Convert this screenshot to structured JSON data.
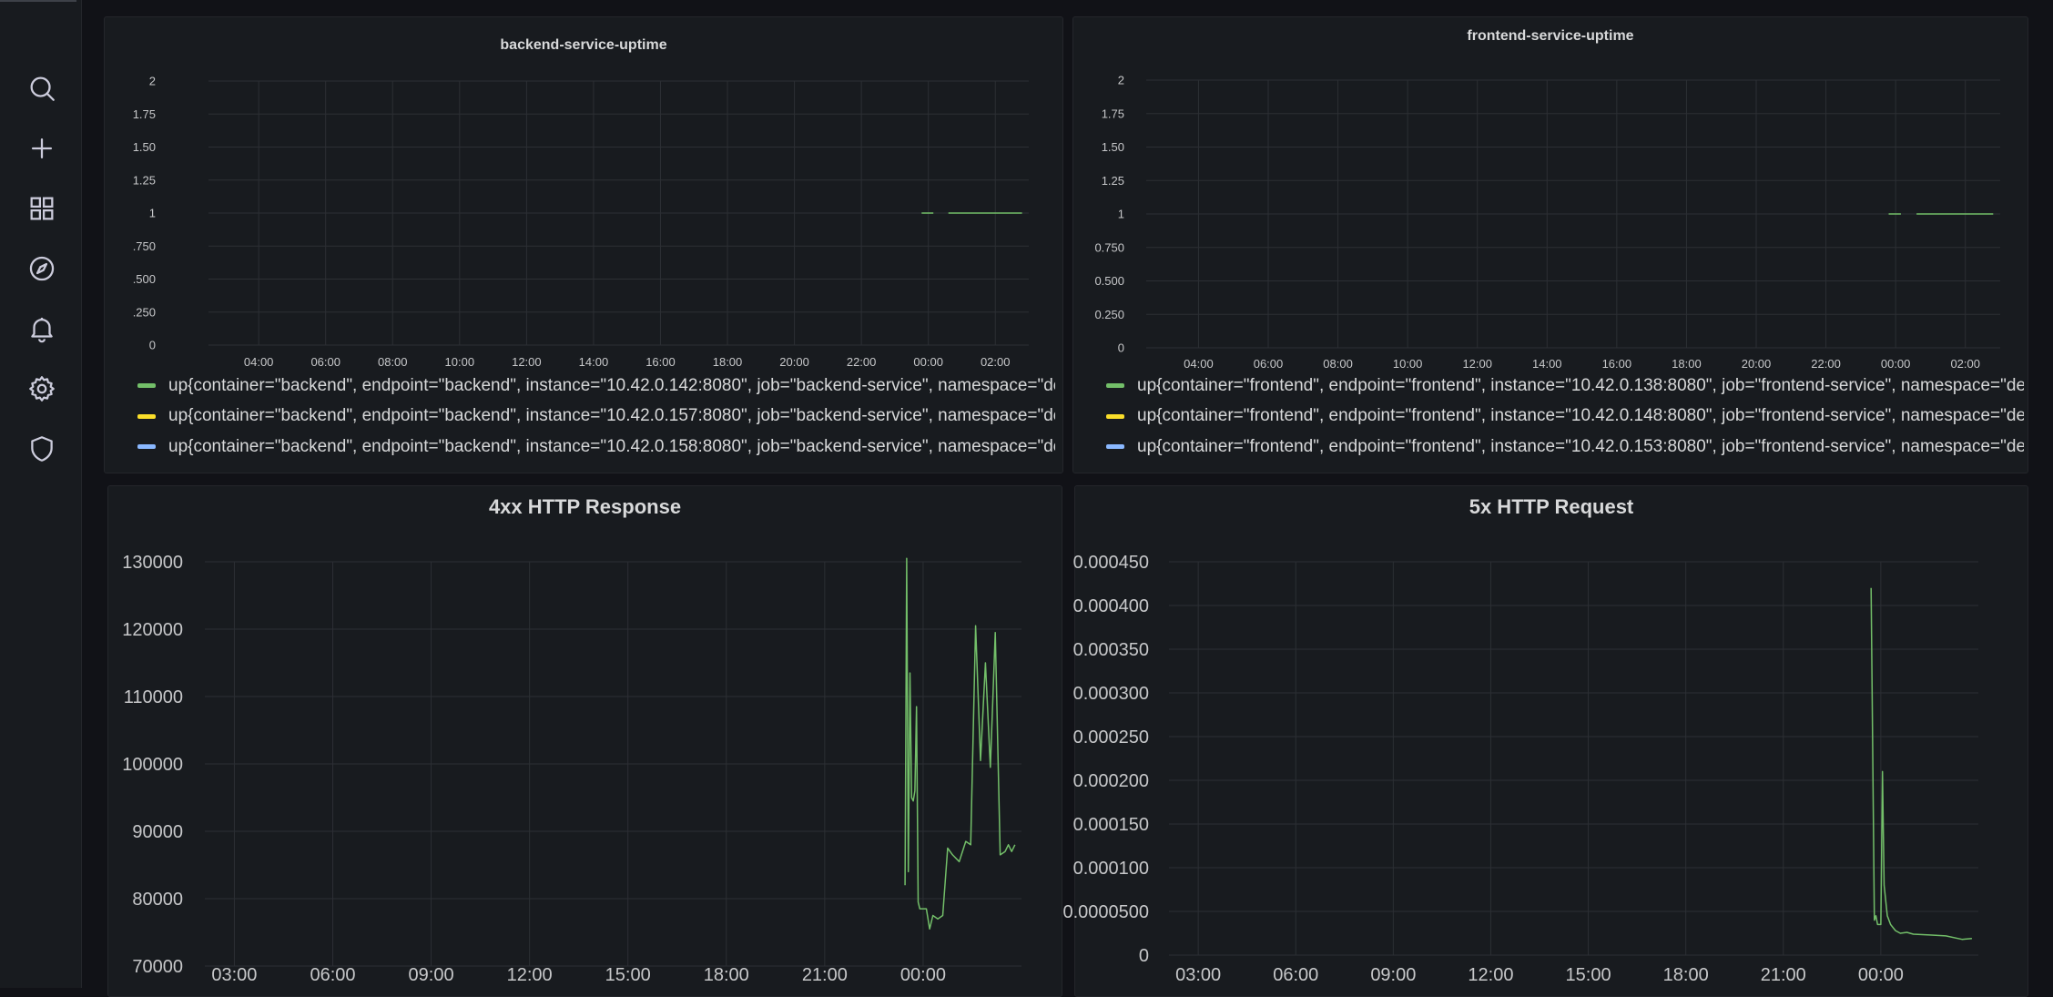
{
  "sidebar": {
    "items": [
      {
        "name": "search-icon"
      },
      {
        "name": "plus-icon"
      },
      {
        "name": "dashboards-icon"
      },
      {
        "name": "explore-compass-icon"
      },
      {
        "name": "alerting-bell-icon"
      },
      {
        "name": "gear-icon"
      },
      {
        "name": "shield-icon"
      }
    ]
  },
  "panels": {
    "backend": {
      "title": "backend-service-uptime",
      "legend": [
        {
          "color": "#73bf69",
          "text": "up{container=\"backend\", endpoint=\"backend\", instance=\"10.42.0.142:8080\", job=\"backend-service\", namespace=\"defaul"
        },
        {
          "color": "#fade2a",
          "text": "up{container=\"backend\", endpoint=\"backend\", instance=\"10.42.0.157:8080\", job=\"backend-service\", namespace=\"defaul"
        },
        {
          "color": "#8ab8ff",
          "text": "up{container=\"backend\", endpoint=\"backend\", instance=\"10.42.0.158:8080\", job=\"backend-service\", namespace=\"defaul"
        }
      ]
    },
    "frontend": {
      "title": "frontend-service-uptime",
      "legend": [
        {
          "color": "#73bf69",
          "text": "up{container=\"frontend\", endpoint=\"frontend\", instance=\"10.42.0.138:8080\", job=\"frontend-service\", namespace=\"defaul"
        },
        {
          "color": "#fade2a",
          "text": "up{container=\"frontend\", endpoint=\"frontend\", instance=\"10.42.0.148:8080\", job=\"frontend-service\", namespace=\"defaul"
        },
        {
          "color": "#8ab8ff",
          "text": "up{container=\"frontend\", endpoint=\"frontend\", instance=\"10.42.0.153:8080\", job=\"frontend-service\", namespace=\"defaul"
        }
      ]
    },
    "http4xx": {
      "title": "4xx HTTP Response"
    },
    "http5xx": {
      "title": "5x HTTP Request"
    }
  },
  "chart_data": [
    {
      "id": "backend",
      "type": "line",
      "title": "backend-service-uptime",
      "x_ticks": [
        "04:00",
        "06:00",
        "08:00",
        "10:00",
        "12:00",
        "14:00",
        "16:00",
        "18:00",
        "20:00",
        "22:00",
        "00:00",
        "02:00"
      ],
      "y_ticks": [
        "2",
        "1.75",
        "1.50",
        "1.25",
        "1",
        ".750",
        ".500",
        ".250",
        "0"
      ],
      "ylim": [
        0,
        2
      ],
      "grid": true,
      "series": [
        {
          "color": "#73bf69",
          "x": [
            23.8,
            24.15
          ],
          "y": [
            1,
            1
          ]
        },
        {
          "color": "#73bf69",
          "x": [
            24.6,
            26.8
          ],
          "y": [
            1,
            1
          ]
        }
      ]
    },
    {
      "id": "frontend",
      "type": "line",
      "title": "frontend-service-uptime",
      "x_ticks": [
        "04:00",
        "06:00",
        "08:00",
        "10:00",
        "12:00",
        "14:00",
        "16:00",
        "18:00",
        "20:00",
        "22:00",
        "00:00",
        "02:00"
      ],
      "y_ticks": [
        "2",
        "1.75",
        "1.50",
        "1.25",
        "1",
        "0.750",
        "0.500",
        "0.250",
        "0"
      ],
      "ylim": [
        0,
        2
      ],
      "grid": true,
      "series": [
        {
          "color": "#73bf69",
          "x": [
            23.8,
            24.15
          ],
          "y": [
            1,
            1
          ]
        },
        {
          "color": "#73bf69",
          "x": [
            24.6,
            26.8
          ],
          "y": [
            1,
            1
          ]
        }
      ]
    },
    {
      "id": "http4xx",
      "type": "line",
      "title": "4xx HTTP Response",
      "x_ticks": [
        "03:00",
        "06:00",
        "09:00",
        "12:00",
        "15:00",
        "18:00",
        "21:00",
        "00:00"
      ],
      "y_ticks": [
        "130000",
        "120000",
        "110000",
        "100000",
        "90000",
        "80000",
        "70000"
      ],
      "ylim": [
        70000,
        130000
      ],
      "grid": true,
      "series": [
        {
          "color": "#73bf69",
          "x": [
            23.45,
            23.5,
            23.55,
            23.6,
            23.65,
            23.7,
            23.75,
            23.8,
            23.85,
            23.9,
            24.1,
            24.2,
            24.3,
            24.45,
            24.6,
            24.75,
            24.9,
            25.1,
            25.3,
            25.45,
            25.6,
            25.75,
            25.9,
            26.05,
            26.2,
            26.35,
            26.5,
            26.6,
            26.7,
            26.8
          ],
          "y": [
            82000,
            130500,
            84000,
            113500,
            95000,
            94500,
            96000,
            108500,
            79500,
            78500,
            78500,
            75500,
            77500,
            77000,
            77500,
            87500,
            86500,
            85500,
            88500,
            88000,
            120500,
            100500,
            115000,
            99500,
            119500,
            86500,
            87000,
            88000,
            87000,
            88000
          ]
        }
      ]
    },
    {
      "id": "http5xx",
      "type": "line",
      "title": "5x HTTP Request",
      "x_ticks": [
        "03:00",
        "06:00",
        "09:00",
        "12:00",
        "15:00",
        "18:00",
        "21:00",
        "00:00"
      ],
      "y_ticks": [
        "0.000450",
        "0.000400",
        "0.000350",
        "0.000300",
        "0.000250",
        "0.000200",
        "0.000150",
        "0.000100",
        "0.0000500",
        "0"
      ],
      "ylim": [
        0,
        0.00045
      ],
      "grid": true,
      "series": [
        {
          "color": "#73bf69",
          "x": [
            23.7,
            23.8,
            23.85,
            23.9,
            24.0,
            24.05,
            24.1,
            24.2,
            24.3,
            24.45,
            24.6,
            24.8,
            25.0,
            25.5,
            26.0,
            26.5,
            26.8
          ],
          "y": [
            0.00042,
            4e-05,
            4.5e-05,
            3.5e-05,
            3.5e-05,
            0.00021,
            8e-05,
            4.5e-05,
            3.5e-05,
            2.8e-05,
            2.5e-05,
            2.6e-05,
            2.4e-05,
            2.3e-05,
            2.2e-05,
            1.8e-05,
            1.9e-05
          ]
        }
      ]
    }
  ]
}
